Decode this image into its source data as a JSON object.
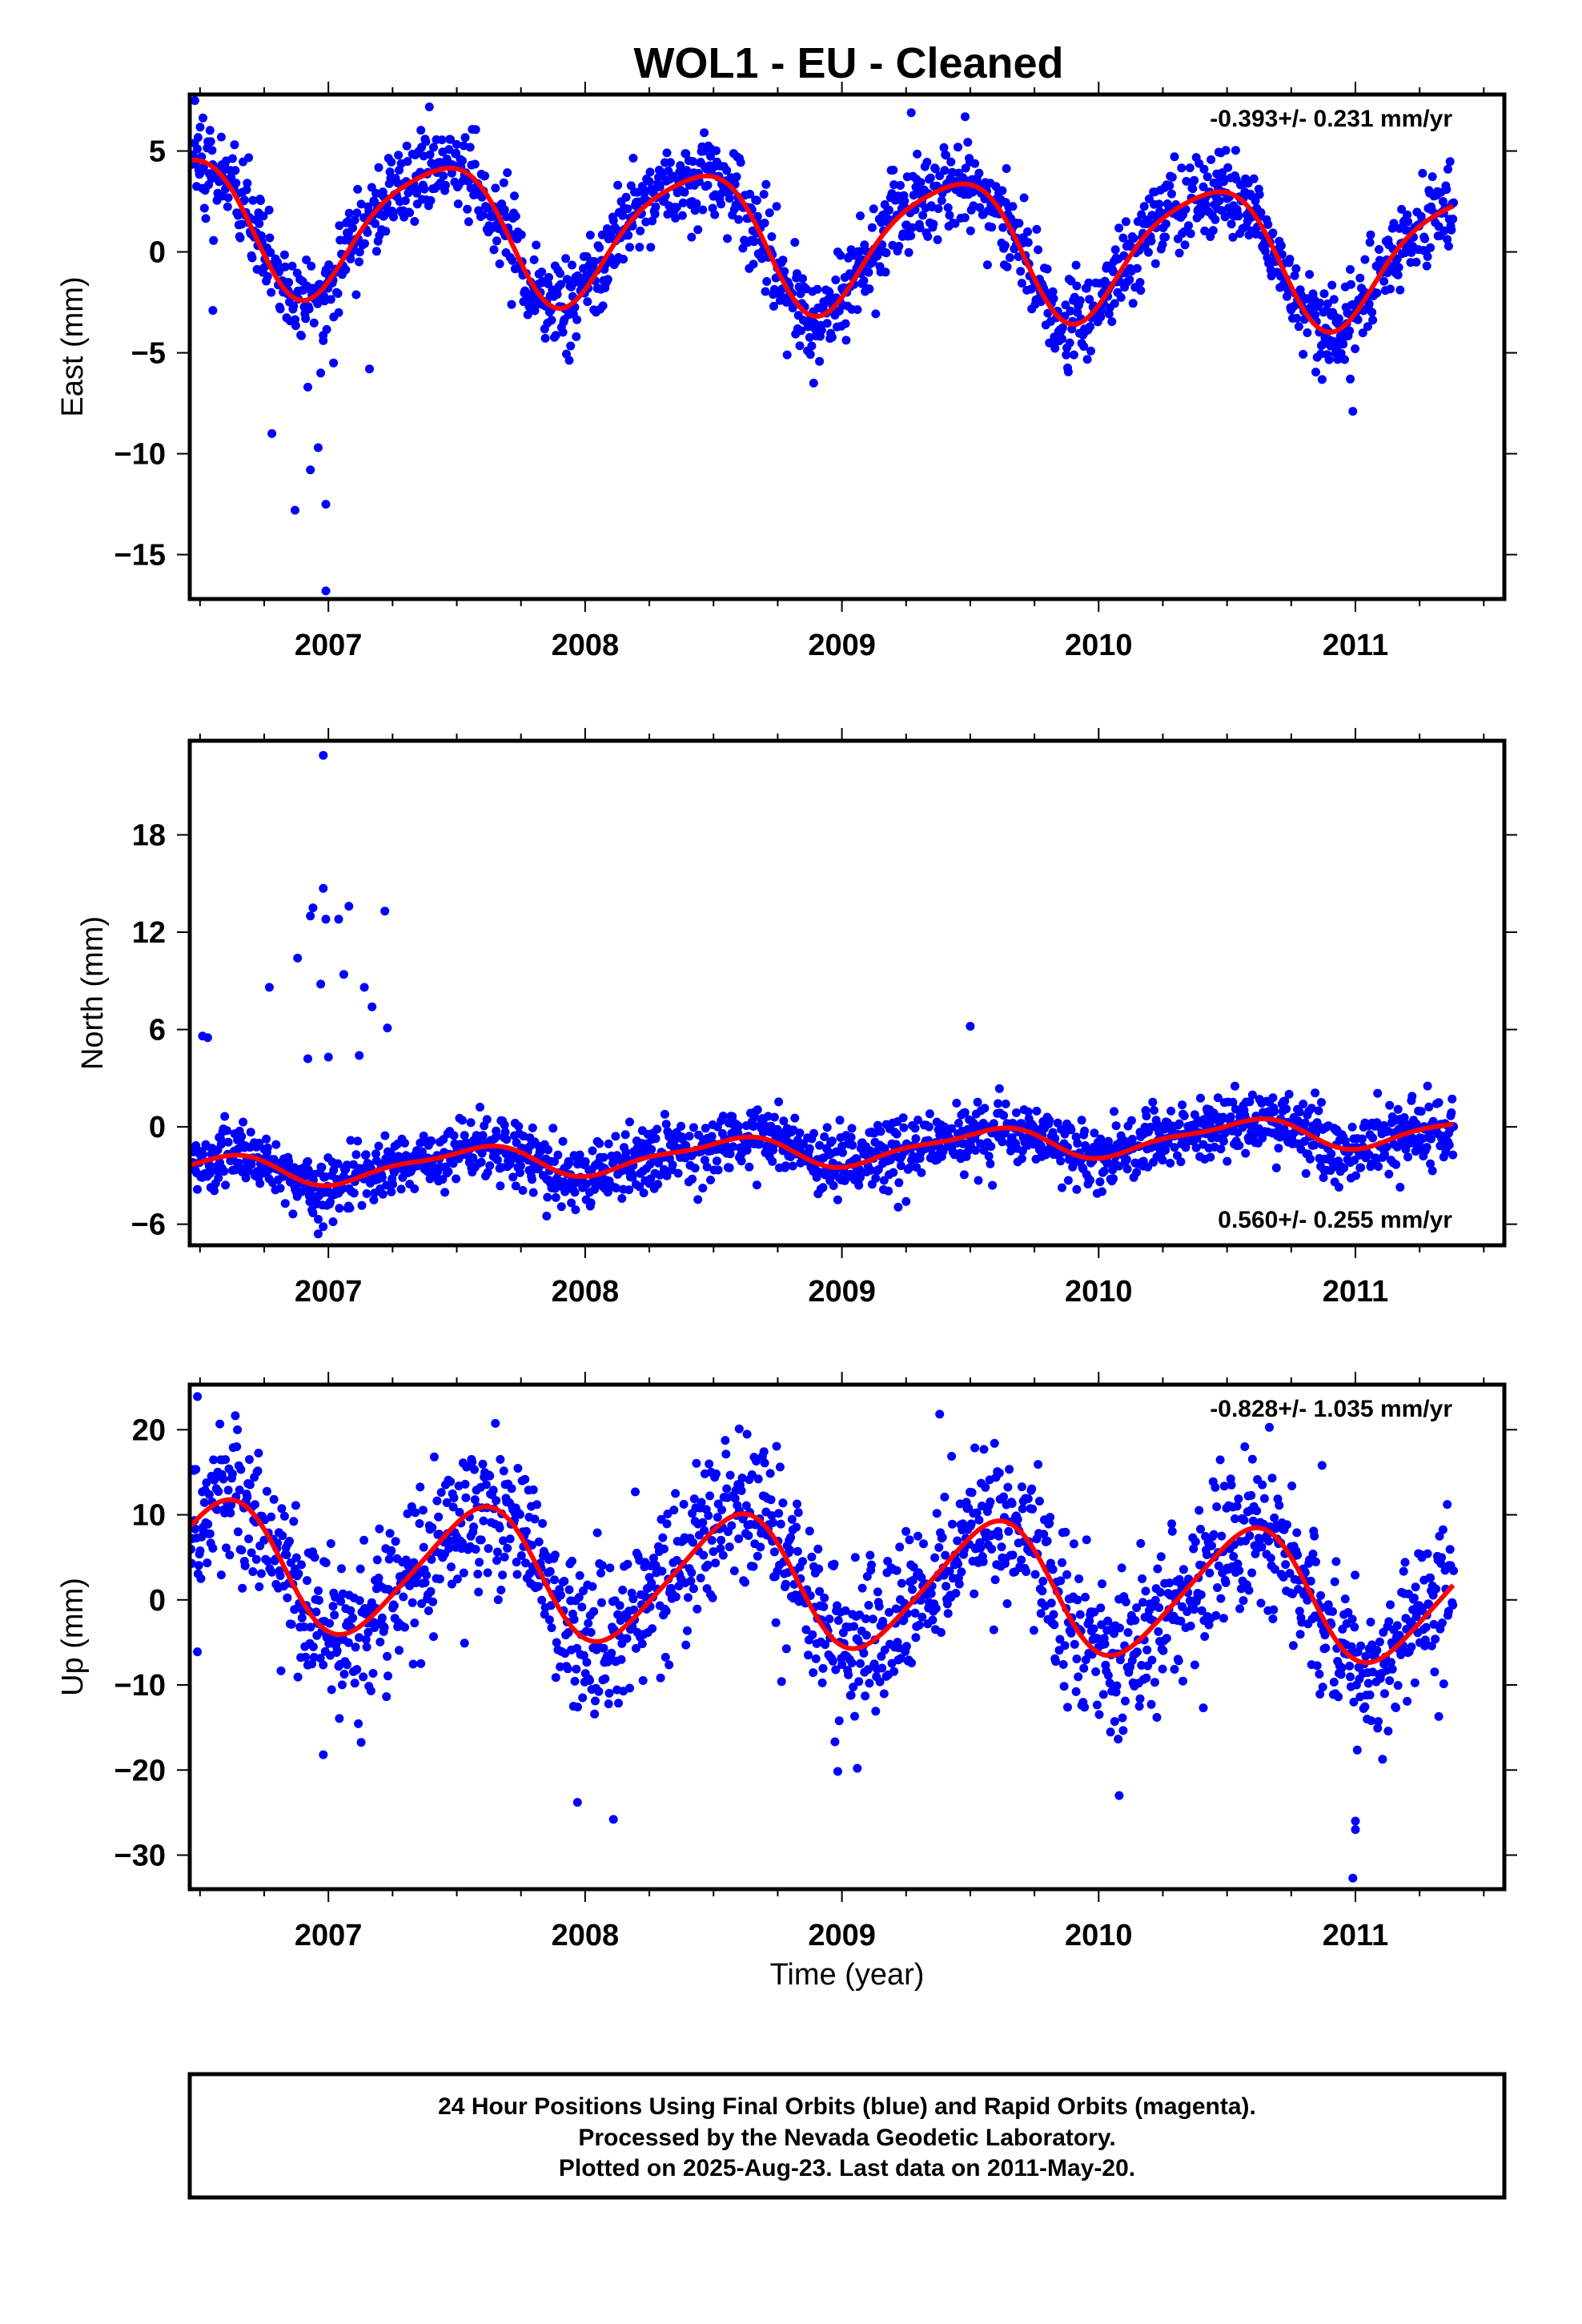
{
  "title": "WOL1  - EU - Cleaned",
  "colors": {
    "final_orbits": "#0000ff",
    "model": "#ff0000",
    "frame": "#000000"
  },
  "caption": {
    "lines": [
      "24 Hour Positions Using Final Orbits (blue) and Rapid Orbits (magenta).",
      "Processed by the Nevada Geodetic Laboratory.",
      "Plotted on 2025-Aug-23. Last data on 2011-May-20."
    ]
  },
  "chart_data": [
    {
      "type": "scatter",
      "ylabel": "East (mm)",
      "xlabel": "",
      "xlim": [
        2006.46,
        2011.58
      ],
      "ylim": [
        -17.2,
        7.8
      ],
      "xticks": [
        2007,
        2008,
        2009,
        2010,
        2011
      ],
      "xtick_labels": [
        "2007",
        "2008",
        "2009",
        "2010",
        "2011"
      ],
      "yticks": [
        -15,
        -10,
        -5,
        0,
        5
      ],
      "ytick_labels": [
        "−15",
        "−10",
        "−5",
        "0",
        "5"
      ],
      "rate": "-0.393+/- 0.231 mm/yr",
      "rate_position": "top-right",
      "series": [
        {
          "kind": "points",
          "model": {
            "offset": 0.6,
            "rate": -0.393,
            "annual": 3.3,
            "annual_phase": 0.42,
            "semiannual": 0.6,
            "semiannual_phase": 0.12,
            "noise_sd": 1.1
          },
          "outliers": [
            {
              "x": 2006.78,
              "y": -9.0
            },
            {
              "x": 2006.87,
              "y": -12.8
            },
            {
              "x": 2006.92,
              "y": -6.7
            },
            {
              "x": 2006.93,
              "y": -10.8
            },
            {
              "x": 2006.96,
              "y": -9.7
            },
            {
              "x": 2006.97,
              "y": -6.0
            },
            {
              "x": 2006.98,
              "y": -4.4
            },
            {
              "x": 2006.99,
              "y": -16.8
            },
            {
              "x": 2006.99,
              "y": -12.5
            },
            {
              "x": 2007.02,
              "y": -5.5
            },
            {
              "x": 2006.55,
              "y": -2.9
            },
            {
              "x": 2007.16,
              "y": -5.8
            },
            {
              "x": 2009.27,
              "y": 6.9
            },
            {
              "x": 2009.48,
              "y": 6.7
            },
            {
              "x": 2010.99,
              "y": -7.9
            },
            {
              "x": 2010.98,
              "y": -6.3
            },
            {
              "x": 2008.89,
              "y": -6.5
            },
            {
              "x": 2006.48,
              "y": 7.5
            }
          ]
        },
        {
          "kind": "model-curve",
          "model": {
            "offset": 0.6,
            "rate": -0.393,
            "annual": 3.3,
            "annual_phase": 0.42,
            "semiannual": 0.6,
            "semiannual_phase": 0.12
          }
        }
      ]
    },
    {
      "type": "scatter",
      "ylabel": "North (mm)",
      "xlabel": "",
      "xlim": [
        2006.46,
        2011.58
      ],
      "ylim": [
        -7.3,
        23.8
      ],
      "xticks": [
        2007,
        2008,
        2009,
        2010,
        2011
      ],
      "xtick_labels": [
        "2007",
        "2008",
        "2009",
        "2010",
        "2011"
      ],
      "yticks": [
        -6,
        0,
        6,
        12,
        18
      ],
      "ytick_labels": [
        "−6",
        "0",
        "6",
        "12",
        "18"
      ],
      "rate": "0.560+/- 0.255 mm/yr",
      "rate_position": "bottom-right",
      "series": [
        {
          "kind": "points",
          "model": {
            "offset": -1.4,
            "rate": 0.56,
            "annual": 0.9,
            "annual_phase": 0.55,
            "semiannual": 0.3,
            "semiannual_phase": 0.2,
            "noise_sd": 1.0
          },
          "outliers": [
            {
              "x": 2006.51,
              "y": 5.6
            },
            {
              "x": 2006.53,
              "y": 5.5
            },
            {
              "x": 2006.77,
              "y": 8.6
            },
            {
              "x": 2006.88,
              "y": 10.4
            },
            {
              "x": 2006.92,
              "y": 4.2
            },
            {
              "x": 2006.93,
              "y": 13.0
            },
            {
              "x": 2006.94,
              "y": 13.5
            },
            {
              "x": 2006.97,
              "y": 8.8
            },
            {
              "x": 2006.98,
              "y": 22.9
            },
            {
              "x": 2006.98,
              "y": 14.7
            },
            {
              "x": 2006.99,
              "y": 12.8
            },
            {
              "x": 2007.0,
              "y": 4.3
            },
            {
              "x": 2007.04,
              "y": 12.8
            },
            {
              "x": 2007.06,
              "y": 9.4
            },
            {
              "x": 2007.08,
              "y": 13.6
            },
            {
              "x": 2007.12,
              "y": 4.4
            },
            {
              "x": 2007.14,
              "y": 8.6
            },
            {
              "x": 2007.17,
              "y": 7.4
            },
            {
              "x": 2007.22,
              "y": 13.3
            },
            {
              "x": 2007.23,
              "y": 6.1
            },
            {
              "x": 2006.94,
              "y": -5.3
            },
            {
              "x": 2006.96,
              "y": -6.6
            },
            {
              "x": 2007.85,
              "y": -5.5
            },
            {
              "x": 2009.25,
              "y": -4.6
            },
            {
              "x": 2009.5,
              "y": 6.2
            }
          ]
        },
        {
          "kind": "model-curve",
          "model": {
            "offset": -1.4,
            "rate": 0.56,
            "annual": 0.9,
            "annual_phase": 0.55,
            "semiannual": 0.3,
            "semiannual_phase": 0.2
          }
        }
      ]
    },
    {
      "type": "scatter",
      "ylabel": "Up (mm)",
      "xlabel": "Time (year)",
      "xlim": [
        2006.46,
        2011.58
      ],
      "ylim": [
        -34.0,
        25.3
      ],
      "xticks": [
        2007,
        2008,
        2009,
        2010,
        2011
      ],
      "xtick_labels": [
        "2007",
        "2008",
        "2009",
        "2010",
        "2011"
      ],
      "yticks": [
        -30,
        -20,
        -10,
        0,
        10,
        20
      ],
      "ytick_labels": [
        "−30",
        "−20",
        "−10",
        "0",
        "10",
        "20"
      ],
      "rate": "-0.828+/- 1.035 mm/yr",
      "rate_position": "top-right",
      "series": [
        {
          "kind": "points",
          "model": {
            "offset": 2.0,
            "rate": -0.828,
            "annual": 7.5,
            "annual_phase": 0.58,
            "semiannual": 1.0,
            "semiannual_phase": 0.2,
            "noise_sd": 4.5
          },
          "outliers": [
            {
              "x": 2006.49,
              "y": 23.9
            },
            {
              "x": 2006.49,
              "y": -6.1
            },
            {
              "x": 2006.98,
              "y": -18.2
            },
            {
              "x": 2007.97,
              "y": -23.8
            },
            {
              "x": 2008.11,
              "y": -25.8
            },
            {
              "x": 2008.6,
              "y": 20.1
            },
            {
              "x": 2009.06,
              "y": -19.8
            },
            {
              "x": 2010.08,
              "y": -23.0
            },
            {
              "x": 2010.99,
              "y": -32.7
            },
            {
              "x": 2011.0,
              "y": -27.0
            },
            {
              "x": 2011.0,
              "y": -26.0
            },
            {
              "x": 2010.87,
              "y": 15.8
            }
          ]
        },
        {
          "kind": "model-curve",
          "model": {
            "offset": 2.0,
            "rate": -0.828,
            "annual": 7.5,
            "annual_phase": 0.58,
            "semiannual": 1.0,
            "semiannual_phase": 0.2
          }
        }
      ]
    }
  ]
}
